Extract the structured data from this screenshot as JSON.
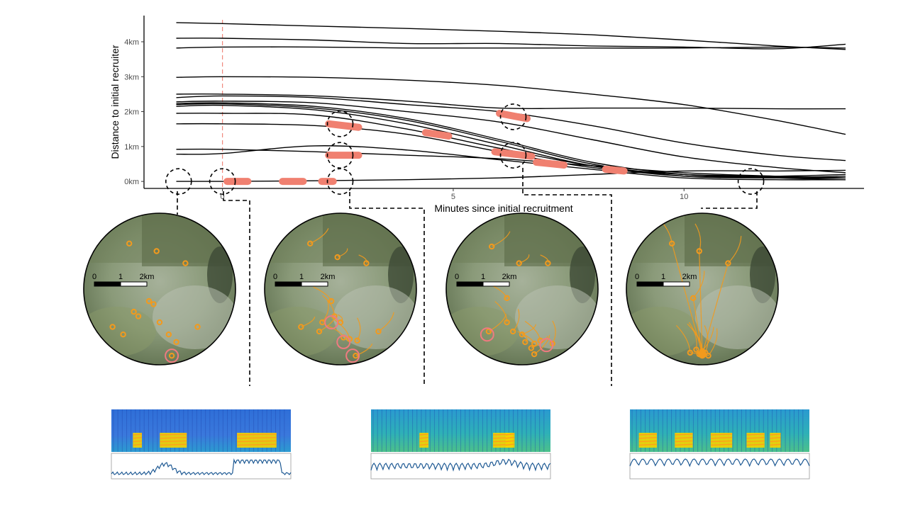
{
  "chart_data": {
    "type": "line",
    "xlabel": "Minutes since initial recruitment",
    "ylabel": "Distance to initial recruiter",
    "x_ticks": [
      "0",
      "5",
      "10"
    ],
    "x_tick_values": [
      0,
      5,
      10
    ],
    "y_ticks": [
      "0km",
      "1km",
      "2km",
      "3km",
      "4km"
    ],
    "y_tick_values": [
      0,
      1,
      2,
      3,
      4
    ],
    "xlim": [
      -1.7,
      13.9
    ],
    "ylim": [
      -0.2,
      4.75
    ],
    "grid": false,
    "reference_line": {
      "x": 0,
      "style": "dashed",
      "color": "#f08a7e"
    },
    "line_color": "#000000",
    "highlight_color": "#f08070",
    "series": [
      {
        "x": [
          -1,
          0,
          2,
          4,
          6,
          8,
          10,
          12,
          13.5
        ],
        "y": [
          4.55,
          4.52,
          4.45,
          4.38,
          4.3,
          4.2,
          4.05,
          3.88,
          3.78
        ]
      },
      {
        "x": [
          -1,
          0,
          2,
          4,
          6,
          8,
          10,
          12,
          13.5
        ],
        "y": [
          4.1,
          4.1,
          4.05,
          3.95,
          3.95,
          3.88,
          3.85,
          3.8,
          3.93
        ]
      },
      {
        "x": [
          -1,
          0,
          2,
          4,
          6,
          8,
          10,
          12,
          13.5
        ],
        "y": [
          3.82,
          3.85,
          3.85,
          3.82,
          3.82,
          3.82,
          3.82,
          3.85,
          3.82
        ]
      },
      {
        "x": [
          -1,
          0,
          2,
          4,
          6,
          8,
          10,
          12,
          13.5
        ],
        "y": [
          2.98,
          3.0,
          2.98,
          2.9,
          2.75,
          2.5,
          2.2,
          1.75,
          1.35
        ]
      },
      {
        "x": [
          -1,
          0,
          2,
          4,
          6,
          8,
          10,
          12,
          13.5
        ],
        "y": [
          2.5,
          2.5,
          2.45,
          2.3,
          2.1,
          2.1,
          2.1,
          2.08,
          2.08
        ]
      },
      {
        "x": [
          -1,
          0,
          2,
          4,
          6,
          8,
          10,
          12,
          13.5
        ],
        "y": [
          2.4,
          2.45,
          2.4,
          2.2,
          2.0,
          1.6,
          1.1,
          0.75,
          0.6
        ]
      },
      {
        "x": [
          -1,
          0,
          2,
          4,
          6,
          8,
          10,
          12,
          13.5
        ],
        "y": [
          2.28,
          2.3,
          2.25,
          2.0,
          1.7,
          1.2,
          0.7,
          0.4,
          0.25
        ]
      },
      {
        "x": [
          -1,
          0,
          2,
          4,
          6,
          8,
          10,
          12,
          13.5
        ],
        "y": [
          2.23,
          2.25,
          2.15,
          1.8,
          1.2,
          0.55,
          0.2,
          0.1,
          0.05
        ]
      },
      {
        "x": [
          -1,
          0,
          2,
          4,
          6,
          8,
          10,
          12,
          13.5
        ],
        "y": [
          2.2,
          2.22,
          2.1,
          1.75,
          1.15,
          0.5,
          0.15,
          0.1,
          0.1
        ]
      },
      {
        "x": [
          -1,
          0,
          2,
          4,
          6,
          8,
          10,
          12,
          13.5
        ],
        "y": [
          2.15,
          2.18,
          2.05,
          1.65,
          1.05,
          0.45,
          0.15,
          0.15,
          0.2
        ]
      },
      {
        "x": [
          -1,
          0,
          2,
          4,
          6,
          8,
          10,
          12,
          13.5
        ],
        "y": [
          1.95,
          1.95,
          1.9,
          1.5,
          0.95,
          0.45,
          0.2,
          0.12,
          0.15
        ]
      },
      {
        "x": [
          -1,
          0,
          2,
          4,
          6,
          8,
          10,
          12,
          13.5
        ],
        "y": [
          1.65,
          1.65,
          1.6,
          1.35,
          0.85,
          0.4,
          0.2,
          0.15,
          0.1
        ]
      },
      {
        "x": [
          -1,
          0,
          2,
          4,
          6,
          8,
          10,
          12,
          13.5
        ],
        "y": [
          0.92,
          0.92,
          0.85,
          0.75,
          0.65,
          0.45,
          0.25,
          0.15,
          0.1
        ]
      },
      {
        "x": [
          -1,
          0,
          2,
          4,
          6,
          8,
          10,
          12,
          13.5
        ],
        "y": [
          0.78,
          0.8,
          1.02,
          0.9,
          0.62,
          0.35,
          0.1,
          0.05,
          0.05
        ]
      },
      {
        "x": [
          -1,
          0,
          2,
          4,
          6,
          8,
          10,
          12,
          13.5
        ],
        "y": [
          0.0,
          0.0,
          0.02,
          0.05,
          0.1,
          0.2,
          0.3,
          0.3,
          0.32
        ]
      }
    ],
    "highlight_segments": [
      {
        "x": [
          0.1,
          0.55
        ],
        "y": [
          0.0,
          0.0
        ]
      },
      {
        "x": [
          1.3,
          1.75
        ],
        "y": [
          0.0,
          0.0
        ]
      },
      {
        "x": [
          2.15,
          2.4
        ],
        "y": [
          0.0,
          0.0
        ]
      },
      {
        "x": [
          2.3,
          2.95
        ],
        "y": [
          1.65,
          1.55
        ]
      },
      {
        "x": [
          2.3,
          2.95
        ],
        "y": [
          0.75,
          0.75
        ]
      },
      {
        "x": [
          4.4,
          4.9
        ],
        "y": [
          1.4,
          1.3
        ]
      },
      {
        "x": [
          6.0,
          6.6
        ],
        "y": [
          1.95,
          1.8
        ]
      },
      {
        "x": [
          5.9,
          6.7
        ],
        "y": [
          0.85,
          0.72
        ]
      },
      {
        "x": [
          6.8,
          7.4
        ],
        "y": [
          0.55,
          0.47
        ]
      },
      {
        "x": [
          8.3,
          8.7
        ],
        "y": [
          0.35,
          0.3
        ]
      }
    ],
    "zoom_markers": [
      {
        "x": -0.95,
        "y": 0.0
      },
      {
        "x": 0.0,
        "y": 0.0
      },
      {
        "x": 2.55,
        "y": 0.0
      },
      {
        "x": 2.55,
        "y": 1.65
      },
      {
        "x": 2.55,
        "y": 0.75
      },
      {
        "x": 6.3,
        "y": 1.85
      },
      {
        "x": 6.3,
        "y": 0.75
      },
      {
        "x": 11.45,
        "y": 0.0
      }
    ]
  },
  "maps": [
    {
      "scale": {
        "ticks": [
          "0",
          "1",
          "2km"
        ]
      },
      "tracks": false,
      "points": [
        [
          0.3,
          0.2
        ],
        [
          0.48,
          0.25
        ],
        [
          0.67,
          0.33
        ],
        [
          0.43,
          0.58
        ],
        [
          0.46,
          0.6
        ],
        [
          0.33,
          0.65
        ],
        [
          0.36,
          0.68
        ],
        [
          0.19,
          0.75
        ],
        [
          0.5,
          0.72
        ],
        [
          0.26,
          0.8
        ],
        [
          0.56,
          0.8
        ],
        [
          0.75,
          0.75
        ],
        [
          0.61,
          0.85
        ],
        [
          0.58,
          0.94
        ]
      ],
      "recruiters": [
        [
          0.58,
          0.94
        ]
      ]
    },
    {
      "scale": {
        "ticks": [
          "0",
          "1",
          "2km"
        ]
      },
      "tracks": true,
      "points": [
        [
          0.3,
          0.2
        ],
        [
          0.48,
          0.29
        ],
        [
          0.67,
          0.33
        ],
        [
          0.44,
          0.58
        ],
        [
          0.46,
          0.68
        ],
        [
          0.38,
          0.72
        ],
        [
          0.36,
          0.78
        ],
        [
          0.24,
          0.75
        ],
        [
          0.5,
          0.72
        ],
        [
          0.52,
          0.82
        ],
        [
          0.56,
          0.83
        ],
        [
          0.61,
          0.84
        ],
        [
          0.75,
          0.78
        ],
        [
          0.6,
          0.94
        ]
      ],
      "recruiters": [
        [
          0.44,
          0.72
        ],
        [
          0.52,
          0.85
        ],
        [
          0.58,
          0.94
        ]
      ]
    },
    {
      "scale": {
        "ticks": [
          "0",
          "1",
          "2km"
        ]
      },
      "tracks": true,
      "points": [
        [
          0.3,
          0.22
        ],
        [
          0.48,
          0.33
        ],
        [
          0.67,
          0.33
        ],
        [
          0.4,
          0.56
        ],
        [
          0.4,
          0.72
        ],
        [
          0.44,
          0.78
        ],
        [
          0.28,
          0.78
        ],
        [
          0.5,
          0.8
        ],
        [
          0.52,
          0.85
        ],
        [
          0.58,
          0.86
        ],
        [
          0.62,
          0.84
        ],
        [
          0.7,
          0.86
        ],
        [
          0.58,
          0.93
        ],
        [
          0.56,
          0.89
        ]
      ],
      "recruiters": [
        [
          0.27,
          0.8
        ],
        [
          0.66,
          0.87
        ]
      ]
    },
    {
      "scale": {
        "ticks": [
          "0",
          "1",
          "2km"
        ]
      },
      "tracks": true,
      "converge": true,
      "points": [
        [
          0.3,
          0.2
        ],
        [
          0.48,
          0.25
        ],
        [
          0.67,
          0.33
        ],
        [
          0.44,
          0.56
        ],
        [
          0.46,
          0.9
        ],
        [
          0.5,
          0.91
        ],
        [
          0.52,
          0.92
        ],
        [
          0.48,
          0.93
        ],
        [
          0.54,
          0.94
        ],
        [
          0.5,
          0.94
        ],
        [
          0.42,
          0.92
        ]
      ],
      "recruiters": []
    }
  ],
  "spectrograms": [
    {
      "style": "blue-bursts"
    },
    {
      "style": "teal-pulses"
    },
    {
      "style": "teal-dense"
    }
  ]
}
